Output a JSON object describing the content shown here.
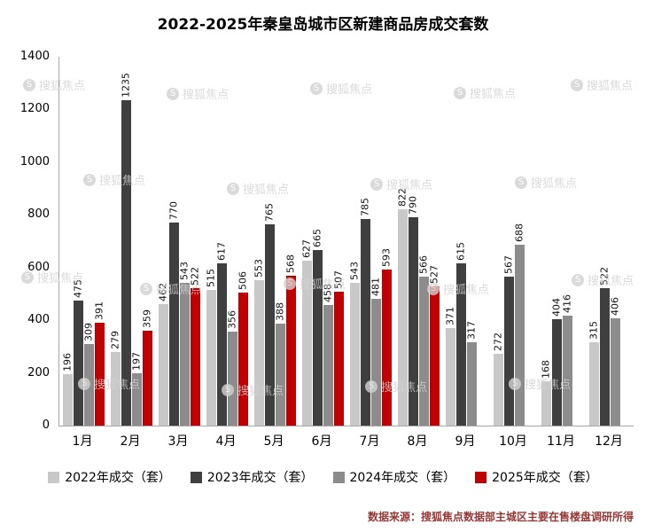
{
  "title": "2022-2025年秦皇岛城市区新建商品房成交套数",
  "source": "数据来源：搜狐焦点数据部主城区主要在售楼盘调研所得",
  "watermark": "搜狐焦点",
  "watermark_logo_letter": "S",
  "chart_data": {
    "type": "bar",
    "title": "2022-2025年秦皇岛城市区新建商品房成交套数",
    "categories": [
      "1月",
      "2月",
      "3月",
      "4月",
      "5月",
      "6月",
      "7月",
      "8月",
      "9月",
      "10月",
      "11月",
      "12月"
    ],
    "series": [
      {
        "name": "2022年成交（套）",
        "color": "#c8c8c8",
        "values": [
          196,
          279,
          462,
          515,
          553,
          627,
          543,
          822,
          371,
          272,
          168,
          315
        ]
      },
      {
        "name": "2023年成交（套）",
        "color": "#3f3f3f",
        "values": [
          475,
          1235,
          770,
          617,
          765,
          665,
          785,
          790,
          615,
          567,
          404,
          522
        ]
      },
      {
        "name": "2024年成交（套）",
        "color": "#8c8c8c",
        "values": [
          309,
          197,
          543,
          356,
          388,
          458,
          481,
          566,
          317,
          688,
          416,
          406
        ]
      },
      {
        "name": "2025年成交（套）",
        "color": "#c00000",
        "values": [
          391,
          359,
          522,
          506,
          568,
          507,
          593,
          527,
          null,
          null,
          null,
          null
        ]
      }
    ],
    "xlabel": "",
    "ylabel": "",
    "ylim": [
      0,
      1400
    ],
    "yticks": [
      0,
      200,
      400,
      600,
      800,
      1000,
      1200,
      1400
    ],
    "grid": false,
    "legend_position": "bottom",
    "value_labels": "rotated-vertical"
  }
}
